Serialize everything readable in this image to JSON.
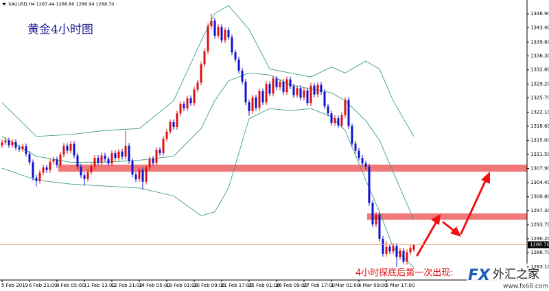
{
  "chart_data": {
    "type": "candlestick",
    "header": "XAUUSD,H4  1287.44 1288.80 1286.94 1288.70",
    "title": "黄金4小时图",
    "annotation": "4小时探底后第一次出现:",
    "up_color": "#e01010",
    "down_color": "#1010d0",
    "candles": [
      [
        1313.8,
        1315.2,
        1313.1,
        1314.5
      ],
      [
        1314.5,
        1315.7,
        1313.8,
        1315
      ],
      [
        1315,
        1315.7,
        1313.1,
        1313.8
      ],
      [
        1313.8,
        1315.3,
        1313.1,
        1314.6
      ],
      [
        1314.6,
        1315.3,
        1312.5,
        1313.2
      ],
      [
        1313.2,
        1313.9,
        1312.1,
        1312.8
      ],
      [
        1312.8,
        1314.2,
        1312.1,
        1313.5
      ],
      [
        1313.5,
        1314.2,
        1310.9,
        1311.6
      ],
      [
        1311.6,
        1312.3,
        1308.8,
        1309.5
      ],
      [
        1309.5,
        1310.2,
        1304.9,
        1305.6
      ],
      [
        1305.6,
        1306.3,
        1303.4,
        1304.8
      ],
      [
        1304.8,
        1307.6,
        1304.1,
        1306.9
      ],
      [
        1306.9,
        1308.9,
        1306.2,
        1308.2
      ],
      [
        1308.2,
        1308.9,
        1306.8,
        1307.5
      ],
      [
        1307.5,
        1310.3,
        1306.8,
        1309.6
      ],
      [
        1309.6,
        1310.9,
        1308.9,
        1310.2
      ],
      [
        1310.2,
        1310.9,
        1308.1,
        1308.8
      ],
      [
        1308.8,
        1312.1,
        1308.1,
        1311.4
      ],
      [
        1311.4,
        1314.3,
        1310.7,
        1313.6
      ],
      [
        1313.6,
        1314.3,
        1311.7,
        1312.4
      ],
      [
        1312.4,
        1314.8,
        1311.7,
        1314.1
      ],
      [
        1314.1,
        1314.8,
        1310.5,
        1311.2
      ],
      [
        1311.2,
        1311.9,
        1307.7,
        1308.4
      ],
      [
        1308.4,
        1309.1,
        1305.5,
        1306.2
      ],
      [
        1306.2,
        1306.9,
        1303.6,
        1305.3
      ],
      [
        1305.3,
        1307.7,
        1304.6,
        1307
      ],
      [
        1307,
        1309.2,
        1306.3,
        1308.5
      ],
      [
        1308.5,
        1311.3,
        1307.8,
        1310.6
      ],
      [
        1310.6,
        1311.3,
        1308.7,
        1309.4
      ],
      [
        1309.4,
        1311.9,
        1308.7,
        1311.2
      ],
      [
        1311.2,
        1311.9,
        1309.6,
        1310.3
      ],
      [
        1310.3,
        1311,
        1308.5,
        1309.2
      ],
      [
        1309.2,
        1312.5,
        1308.5,
        1311.8
      ],
      [
        1311.8,
        1312.5,
        1309.9,
        1310.6
      ],
      [
        1310.6,
        1312.9,
        1309.9,
        1312.2
      ],
      [
        1312.2,
        1312.9,
        1310.2,
        1310.9
      ],
      [
        1310.9,
        1317.5,
        1310.2,
        1313.6
      ],
      [
        1313.6,
        1314.3,
        1309.1,
        1309.8
      ],
      [
        1309.8,
        1310.5,
        1305.7,
        1306.4
      ],
      [
        1306.4,
        1307.1,
        1304.5,
        1305.2
      ],
      [
        1305.2,
        1308.2,
        1304.5,
        1307.5
      ],
      [
        1307.5,
        1308.2,
        1302.6,
        1304.6
      ],
      [
        1304.6,
        1308.9,
        1303.9,
        1308.2
      ],
      [
        1308.2,
        1311.1,
        1307.5,
        1310.4
      ],
      [
        1310.4,
        1311.1,
        1308.6,
        1309.3
      ],
      [
        1309.3,
        1313.3,
        1308.6,
        1312.6
      ],
      [
        1312.6,
        1313.3,
        1311.1,
        1311.8
      ],
      [
        1311.8,
        1316.1,
        1311.1,
        1315.4
      ],
      [
        1315.4,
        1317.9,
        1314.7,
        1317.2
      ],
      [
        1317.2,
        1320.3,
        1316.5,
        1319.6
      ],
      [
        1319.6,
        1320.3,
        1317.7,
        1318.4
      ],
      [
        1318.4,
        1322.5,
        1317.7,
        1321.8
      ],
      [
        1321.8,
        1324.9,
        1321.1,
        1324.2
      ],
      [
        1324.2,
        1324.9,
        1322.4,
        1323.1
      ],
      [
        1323.1,
        1326.3,
        1322.4,
        1325.6
      ],
      [
        1325.6,
        1326.3,
        1323.7,
        1324.4
      ],
      [
        1324.4,
        1328.5,
        1323.7,
        1327.8
      ],
      [
        1327.8,
        1330.3,
        1327.1,
        1329.6
      ],
      [
        1329.6,
        1334.9,
        1328.9,
        1334.2
      ],
      [
        1334.2,
        1338.2,
        1333.5,
        1337.5
      ],
      [
        1337.5,
        1344.5,
        1336.8,
        1343.8
      ],
      [
        1343.8,
        1346.9,
        1343.1,
        1345.2
      ],
      [
        1345.2,
        1345.9,
        1340.7,
        1341.4
      ],
      [
        1341.4,
        1344.3,
        1340.7,
        1343.6
      ],
      [
        1343.6,
        1344.3,
        1339.5,
        1340.2
      ],
      [
        1340.2,
        1343.5,
        1339.5,
        1342.8
      ],
      [
        1342.8,
        1343.5,
        1340.3,
        1341
      ],
      [
        1341,
        1341.7,
        1336.5,
        1337.2
      ],
      [
        1337.2,
        1337.9,
        1334.7,
        1335.4
      ],
      [
        1335.4,
        1336.1,
        1331.9,
        1332.6
      ],
      [
        1332.6,
        1333.3,
        1329.1,
        1329.8
      ],
      [
        1329.8,
        1330.5,
        1323.9,
        1324.6
      ],
      [
        1324.6,
        1325.3,
        1321.2,
        1322.4
      ],
      [
        1322.4,
        1326.5,
        1321.7,
        1325.8
      ],
      [
        1325.8,
        1326.5,
        1322.5,
        1323.2
      ],
      [
        1323.2,
        1328.1,
        1322.5,
        1327.4
      ],
      [
        1327.4,
        1328.1,
        1323.9,
        1324.6
      ],
      [
        1324.6,
        1329.9,
        1323.9,
        1329.2
      ],
      [
        1329.2,
        1329.9,
        1326.1,
        1326.8
      ],
      [
        1326.8,
        1331.3,
        1326.1,
        1330.6
      ],
      [
        1330.6,
        1331.3,
        1327.7,
        1328.4
      ],
      [
        1328.4,
        1330.5,
        1327.7,
        1329.8
      ],
      [
        1329.8,
        1330.5,
        1326.5,
        1327.2
      ],
      [
        1327.2,
        1331.1,
        1326.5,
        1330.4
      ],
      [
        1330.4,
        1331.1,
        1327.9,
        1328.6
      ],
      [
        1328.6,
        1329.3,
        1325.7,
        1326.4
      ],
      [
        1326.4,
        1328.9,
        1325.7,
        1328.2
      ],
      [
        1328.2,
        1328.9,
        1325.1,
        1325.8
      ],
      [
        1325.8,
        1328.3,
        1325.1,
        1327.6
      ],
      [
        1327.6,
        1328.3,
        1323.7,
        1324.4
      ],
      [
        1324.4,
        1329.5,
        1323.7,
        1328.8
      ],
      [
        1328.8,
        1329.5,
        1325.9,
        1326.6
      ],
      [
        1326.6,
        1329.7,
        1325.9,
        1329
      ],
      [
        1329,
        1329.7,
        1326.5,
        1327.2
      ],
      [
        1327.2,
        1327.9,
        1322.9,
        1323.6
      ],
      [
        1323.6,
        1324.3,
        1321.1,
        1321.8
      ],
      [
        1321.8,
        1322.5,
        1318.7,
        1319.4
      ],
      [
        1319.4,
        1321.3,
        1318.7,
        1320.6
      ],
      [
        1320.6,
        1321.3,
        1318.1,
        1318.8
      ],
      [
        1318.8,
        1322.1,
        1318.1,
        1321.4
      ],
      [
        1321.4,
        1325.9,
        1320.7,
        1325.2
      ],
      [
        1325.2,
        1325.9,
        1317.9,
        1318.6
      ],
      [
        1318.6,
        1319.3,
        1313.5,
        1314.2
      ],
      [
        1314.2,
        1314.9,
        1311.7,
        1312.4
      ],
      [
        1312.4,
        1313.1,
        1309.9,
        1310.6
      ],
      [
        1310.6,
        1311.3,
        1308.5,
        1309.2
      ],
      [
        1309.2,
        1309.9,
        1307.7,
        1308.4
      ],
      [
        1308.4,
        1309.1,
        1298.5,
        1299.2
      ],
      [
        1299.2,
        1299.9,
        1293.1,
        1293.8
      ],
      [
        1293.8,
        1296.9,
        1293.1,
        1296.2
      ],
      [
        1296.2,
        1296.9,
        1289.5,
        1290.2
      ],
      [
        1290.2,
        1290.9,
        1285.7,
        1286.4
      ],
      [
        1286.4,
        1289.6,
        1285.7,
        1288.2
      ],
      [
        1288.2,
        1288.9,
        1286.3,
        1287
      ],
      [
        1287,
        1289.1,
        1286.3,
        1288.4
      ],
      [
        1288.4,
        1289.1,
        1283.1,
        1285.6
      ],
      [
        1285.6,
        1287.9,
        1284.9,
        1287.2
      ],
      [
        1287.2,
        1287.9,
        1283.7,
        1284.4
      ],
      [
        1284.4,
        1287.5,
        1283.7,
        1286.8
      ],
      [
        1286.8,
        1288.6,
        1286.1,
        1287.9
      ],
      [
        1287.44,
        1288.8,
        1286.94,
        1288.7
      ]
    ],
    "bands": {
      "color": "#3f9e7e",
      "x": [
        0,
        10,
        20,
        30,
        40,
        50,
        58,
        62,
        66,
        72,
        78,
        84,
        90,
        96,
        100,
        106,
        110,
        114,
        120
      ],
      "series": [
        {
          "values": [
            1324.5,
            1316,
            1316.5,
            1317.5,
            1318,
            1325,
            1340,
            1347,
            1349,
            1343,
            1333,
            1332,
            1331,
            1333.5,
            1332,
            1335,
            1333,
            1325,
            1316
          ]
        },
        {
          "values": [
            1316,
            1311,
            1309.5,
            1309.5,
            1310,
            1311,
            1318,
            1325,
            1330,
            1332,
            1331.5,
            1329,
            1328,
            1327,
            1325,
            1320,
            1315,
            1307,
            1295
          ]
        },
        {
          "values": [
            1308,
            1305,
            1304,
            1303.5,
            1303,
            1301,
            1296,
            1297,
            1303,
            1320.5,
            1323,
            1322.5,
            1323,
            1321,
            1317.5,
            1305,
            1297,
            1288,
            1283
          ]
        }
      ]
    },
    "zones": {
      "color": "#f07878",
      "ranges": [
        [
          1307.1,
          1308.9
        ],
        [
          1295,
          1296.6
        ]
      ]
    },
    "last_price": {
      "value": 1288.7,
      "label": "1288.70"
    },
    "last_price_color": "#e8a070",
    "xticks": [
      {
        "value": 0,
        "label": "5 Feb 2019"
      },
      {
        "value": 8,
        "label": "6 Feb 21:00"
      },
      {
        "value": 16,
        "label": "8 Feb 05:00"
      },
      {
        "value": 24,
        "label": "11 Feb 13:00"
      },
      {
        "value": 32,
        "label": "12 Feb 21:00"
      },
      {
        "value": 40,
        "label": "14 Feb 05:00"
      },
      {
        "value": 48,
        "label": "19 Feb 01:00"
      },
      {
        "value": 56,
        "label": "20 Feb 09:00"
      },
      {
        "value": 64,
        "label": "21 Feb 17:00"
      },
      {
        "value": 72,
        "label": "25 Feb 01:00"
      },
      {
        "value": 80,
        "label": "26 Feb 09:00"
      },
      {
        "value": 88,
        "label": "27 Feb 17:00"
      },
      {
        "value": 96,
        "label": "1 Mar 01:00"
      },
      {
        "value": 104,
        "label": "4 Mar 09:00"
      },
      {
        "value": 112,
        "label": "5 Mar 17:00"
      }
    ],
    "ylim": [
      1279.8,
      1350.4
    ],
    "yticks": [
      {
        "value": 1346.9,
        "label": "1346.90"
      },
      {
        "value": 1343.4,
        "label": "1343.40"
      },
      {
        "value": 1339.8,
        "label": "1339.80"
      },
      {
        "value": 1336.3,
        "label": "1336.30"
      },
      {
        "value": 1332.8,
        "label": "1332.80"
      },
      {
        "value": 1329.2,
        "label": "1329.20"
      },
      {
        "value": 1325.7,
        "label": "1325.70"
      },
      {
        "value": 1322.1,
        "label": "1322.10"
      },
      {
        "value": 1318.6,
        "label": "1318.60"
      },
      {
        "value": 1315,
        "label": "1315.00"
      },
      {
        "value": 1311.5,
        "label": "1311.50"
      },
      {
        "value": 1307.9,
        "label": "1307.90"
      },
      {
        "value": 1304.4,
        "label": "1304.40"
      },
      {
        "value": 1300.8,
        "label": "1300.80"
      },
      {
        "value": 1297.3,
        "label": "1297.30"
      },
      {
        "value": 1293.7,
        "label": "1293.70"
      },
      {
        "value": 1290.2,
        "label": "1290.20"
      },
      {
        "value": 1286.7,
        "label": "1286.70"
      },
      {
        "value": 1283.1,
        "label": "1283.10"
      }
    ]
  },
  "logo": {
    "mark": "FX",
    "name": "外汇之家",
    "url": "www.fx68.com"
  }
}
